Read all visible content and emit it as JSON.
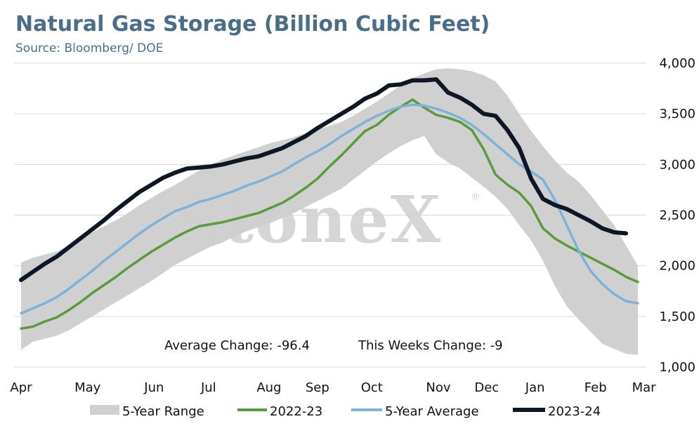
{
  "chart_data": {
    "type": "line",
    "title": "Natural Gas Storage (Billion Cubic Feet)",
    "subtitle": "Source: Bloomberg/ DOE",
    "ylim": [
      1000,
      4000
    ],
    "y_ticks": [
      1000,
      1500,
      2000,
      2500,
      3000,
      3500,
      4000
    ],
    "y_tick_labels": [
      "1,000",
      "1,500",
      "2,000",
      "2,500",
      "3,000",
      "3,500",
      "4,000"
    ],
    "x_month_labels": [
      "Apr",
      "May",
      "Jun",
      "Jul",
      "Aug",
      "Sep",
      "Oct",
      "Nov",
      "Dec",
      "Jan",
      "Feb",
      "Mar"
    ],
    "x_week_index_range": [
      0,
      51
    ],
    "x_month_label_positions": [
      0,
      5.5,
      11,
      15.5,
      20.5,
      24.5,
      29,
      34.5,
      38.5,
      42.5,
      47.5,
      51.5
    ],
    "watermark": "StoneX",
    "watermark_mark": "®",
    "annotations": {
      "average_change": "Average Change: -96.4",
      "this_week_change": "This Weeks Change: -9"
    },
    "range_band": {
      "name": "5-Year Range",
      "color": "#d0d0d0",
      "upper": [
        2030,
        2080,
        2110,
        2140,
        2200,
        2270,
        2330,
        2390,
        2450,
        2520,
        2600,
        2670,
        2740,
        2800,
        2870,
        2940,
        3000,
        3050,
        3090,
        3130,
        3170,
        3210,
        3240,
        3270,
        3310,
        3350,
        3380,
        3420,
        3480,
        3550,
        3620,
        3700,
        3780,
        3850,
        3900,
        3940,
        3950,
        3940,
        3920,
        3880,
        3820,
        3680,
        3500,
        3330,
        3180,
        3040,
        2920,
        2830,
        2700,
        2550,
        2400,
        2200,
        2000
      ],
      "lower": [
        1170,
        1250,
        1280,
        1310,
        1360,
        1430,
        1500,
        1570,
        1640,
        1710,
        1780,
        1850,
        1930,
        2010,
        2070,
        2130,
        2190,
        2230,
        2290,
        2340,
        2380,
        2420,
        2470,
        2520,
        2580,
        2640,
        2700,
        2760,
        2850,
        2940,
        3030,
        3110,
        3180,
        3240,
        3280,
        3100,
        3020,
        2960,
        2870,
        2780,
        2680,
        2560,
        2400,
        2250,
        2050,
        1800,
        1600,
        1470,
        1350,
        1230,
        1180,
        1130,
        1120
      ]
    },
    "series": [
      {
        "name": "2022-23",
        "color": "#5a9c3d",
        "values": [
          1380,
          1400,
          1450,
          1490,
          1560,
          1640,
          1730,
          1810,
          1890,
          1980,
          2060,
          2140,
          2210,
          2280,
          2340,
          2390,
          2410,
          2430,
          2460,
          2490,
          2520,
          2570,
          2620,
          2690,
          2770,
          2860,
          2980,
          3090,
          3210,
          3330,
          3390,
          3490,
          3570,
          3640,
          3560,
          3490,
          3460,
          3420,
          3340,
          3150,
          2900,
          2800,
          2720,
          2590,
          2370,
          2270,
          2200,
          2140,
          2080,
          2020,
          1960,
          1890,
          1840
        ]
      },
      {
        "name": "5-Year Average",
        "color": "#7fb2d9",
        "values": [
          1530,
          1580,
          1630,
          1690,
          1770,
          1860,
          1950,
          2050,
          2140,
          2230,
          2320,
          2400,
          2470,
          2540,
          2580,
          2630,
          2660,
          2700,
          2740,
          2790,
          2830,
          2880,
          2930,
          3000,
          3070,
          3130,
          3200,
          3280,
          3350,
          3420,
          3480,
          3530,
          3570,
          3590,
          3580,
          3550,
          3510,
          3460,
          3390,
          3300,
          3200,
          3100,
          3000,
          2930,
          2850,
          2650,
          2400,
          2150,
          1950,
          1820,
          1720,
          1650,
          1630
        ]
      },
      {
        "name": "2023-24",
        "color": "#0d1726",
        "values": [
          1860,
          1940,
          2020,
          2090,
          2180,
          2270,
          2360,
          2450,
          2550,
          2640,
          2730,
          2800,
          2870,
          2920,
          2960,
          2970,
          2980,
          3000,
          3030,
          3060,
          3080,
          3120,
          3160,
          3220,
          3280,
          3360,
          3430,
          3500,
          3570,
          3650,
          3700,
          3780,
          3790,
          3830,
          3830,
          3840,
          3710,
          3660,
          3590,
          3500,
          3480,
          3340,
          3160,
          2860,
          2660,
          2600,
          2560,
          2500,
          2440,
          2370,
          2330,
          2320
        ]
      }
    ]
  }
}
